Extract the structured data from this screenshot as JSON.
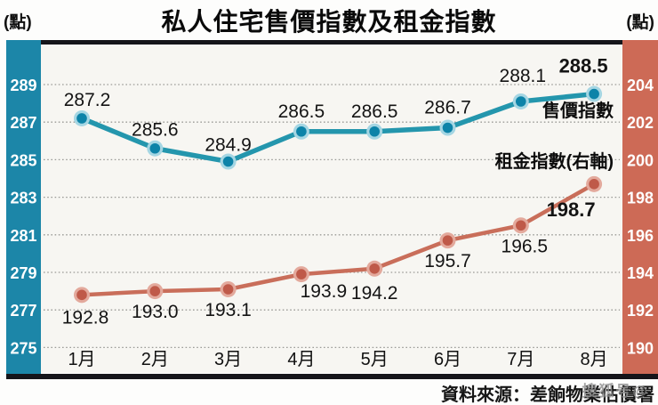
{
  "header": {
    "title": "私人住宅售價指數及租金指數",
    "left_unit": "(點)",
    "right_unit": "(點)"
  },
  "footer": {
    "source": "資料來源：差餉物業估價署",
    "watermark": "搜狐号@"
  },
  "colors": {
    "left_band": "#1c86a8",
    "right_band": "#cd6a56",
    "price_line": "#2496ad",
    "price_marker": "#0d83a8",
    "price_halo": "#a5d6e3",
    "rent_line": "#c96e5a",
    "rent_marker": "#bf5a49",
    "rent_halo": "#e3a99c",
    "grid": "#9b9b97",
    "frame": "#15151a",
    "plot_bg": "#f7f6f2",
    "tick_text": "#ffffff",
    "label_text": "#141414"
  },
  "chart_data": {
    "type": "line",
    "title": "私人住宅售價指數及租金指數",
    "categories": [
      "1月",
      "2月",
      "3月",
      "4月",
      "5月",
      "6月",
      "7月",
      "8月"
    ],
    "series": [
      {
        "name": "售價指數",
        "axis": "left",
        "color_key": "price",
        "values": [
          287.2,
          285.6,
          284.9,
          286.5,
          286.5,
          286.7,
          288.1,
          288.5
        ]
      },
      {
        "name": "租金指數(右軸)",
        "axis": "right",
        "color_key": "rent",
        "values": [
          192.8,
          193.0,
          193.1,
          193.9,
          194.2,
          195.7,
          196.5,
          198.7
        ]
      }
    ],
    "left_axis": {
      "unit": "(點)",
      "ticks": [
        289,
        287,
        285,
        283,
        281,
        279,
        277,
        275
      ],
      "range": [
        275,
        289
      ]
    },
    "right_axis": {
      "unit": "(點)",
      "ticks": [
        204,
        202,
        200,
        198,
        196,
        194,
        192,
        190
      ],
      "range": [
        190,
        204
      ]
    },
    "grid": "horizontal-dotted",
    "legend_position": "inside-right",
    "data_labels": true
  }
}
